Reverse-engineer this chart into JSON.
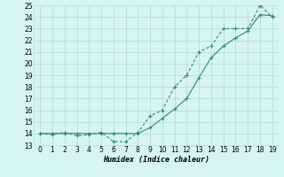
{
  "xlabel": "Humidex (Indice chaleur)",
  "line1_x": [
    0,
    1,
    2,
    3,
    4,
    5,
    6,
    7,
    8,
    9,
    10,
    11,
    12,
    13,
    14,
    15,
    16,
    17,
    18,
    19
  ],
  "line1_y": [
    14,
    13.9,
    14.1,
    13.8,
    13.9,
    14.1,
    13.3,
    13.3,
    14.1,
    15.5,
    16.0,
    18.0,
    19.0,
    21.0,
    21.5,
    23.0,
    23.0,
    23.0,
    25.0,
    24.0
  ],
  "line2_x": [
    0,
    1,
    2,
    3,
    4,
    5,
    6,
    7,
    8,
    9,
    10,
    11,
    12,
    13,
    14,
    15,
    16,
    17,
    18,
    19
  ],
  "line2_y": [
    14,
    14,
    14,
    14,
    14,
    14,
    14,
    14,
    14,
    14.5,
    15.3,
    16.1,
    17.0,
    18.8,
    20.5,
    21.5,
    22.2,
    22.8,
    24.2,
    24.1
  ],
  "line_color": "#2e8b6e",
  "bg_color": "#d6f5ef",
  "grid_color": "#b8ddd6",
  "ylim": [
    13,
    25
  ],
  "xlim": [
    -0.5,
    19.5
  ],
  "yticks": [
    13,
    14,
    15,
    16,
    17,
    18,
    19,
    20,
    21,
    22,
    23,
    24,
    25
  ],
  "xticks": [
    0,
    1,
    2,
    3,
    4,
    5,
    6,
    7,
    8,
    9,
    10,
    11,
    12,
    13,
    14,
    15,
    16,
    17,
    18,
    19
  ]
}
